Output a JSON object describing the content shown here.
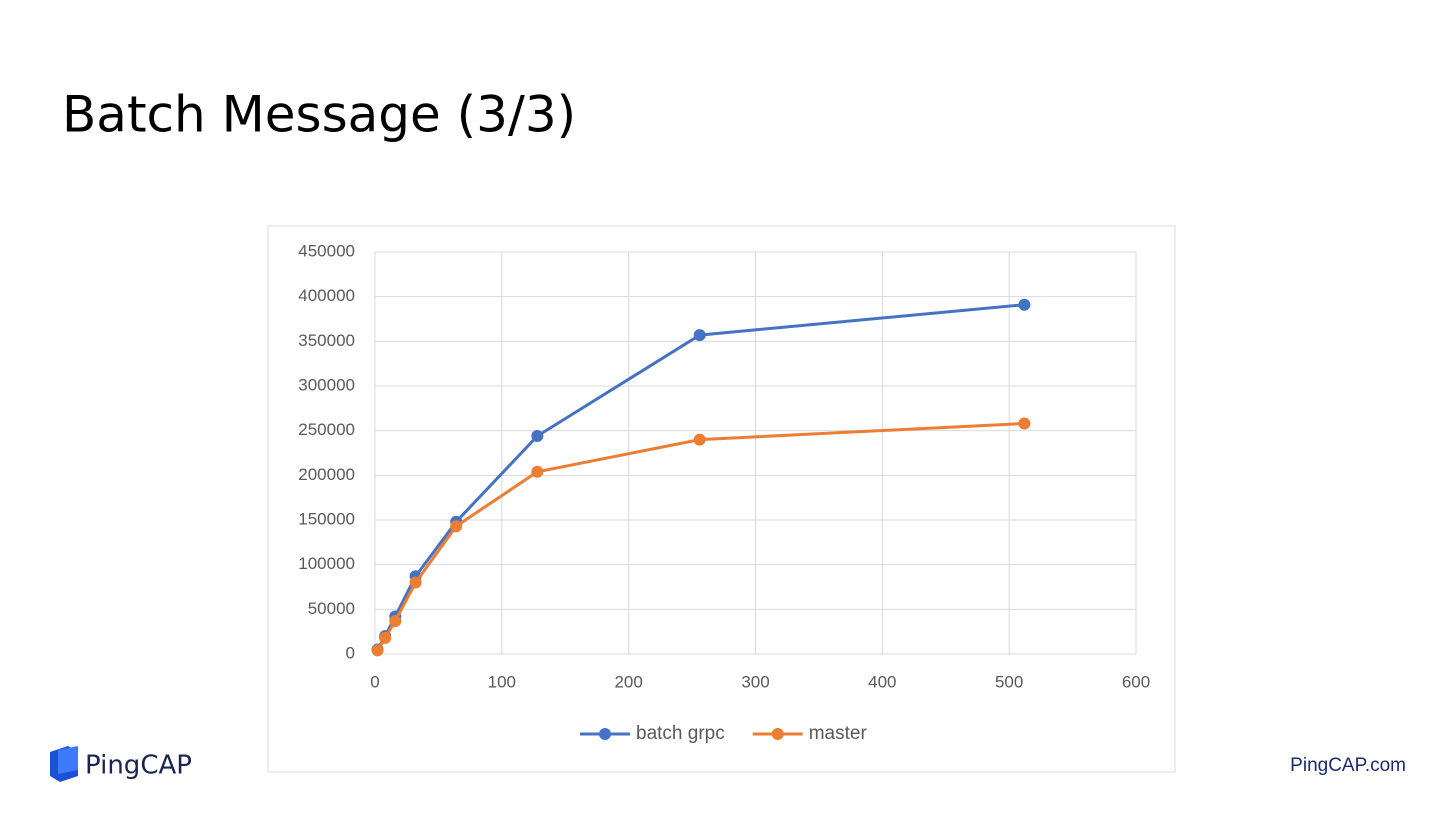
{
  "slide": {
    "title": "Batch Message (3/3)",
    "logo_text": "PingCAP",
    "footer_url": "PingCAP.com"
  },
  "chart_data": {
    "type": "line",
    "x": [
      2,
      8,
      16,
      32,
      64,
      128,
      256,
      512
    ],
    "series": [
      {
        "name": "batch grpc",
        "color": "#4472c4",
        "values": [
          5000,
          20000,
          42000,
          87000,
          148000,
          244000,
          357000,
          391000
        ]
      },
      {
        "name": "master",
        "color": "#ed7d31",
        "values": [
          4000,
          18000,
          37000,
          80000,
          143000,
          204000,
          240000,
          258000
        ]
      }
    ],
    "xlim": [
      0,
      600
    ],
    "xticks": [
      0,
      100,
      200,
      300,
      400,
      500,
      600
    ],
    "ylim": [
      0,
      450000
    ],
    "yticks": [
      0,
      50000,
      100000,
      150000,
      200000,
      250000,
      300000,
      350000,
      400000,
      450000
    ],
    "grid": true,
    "legend": "bottom"
  }
}
